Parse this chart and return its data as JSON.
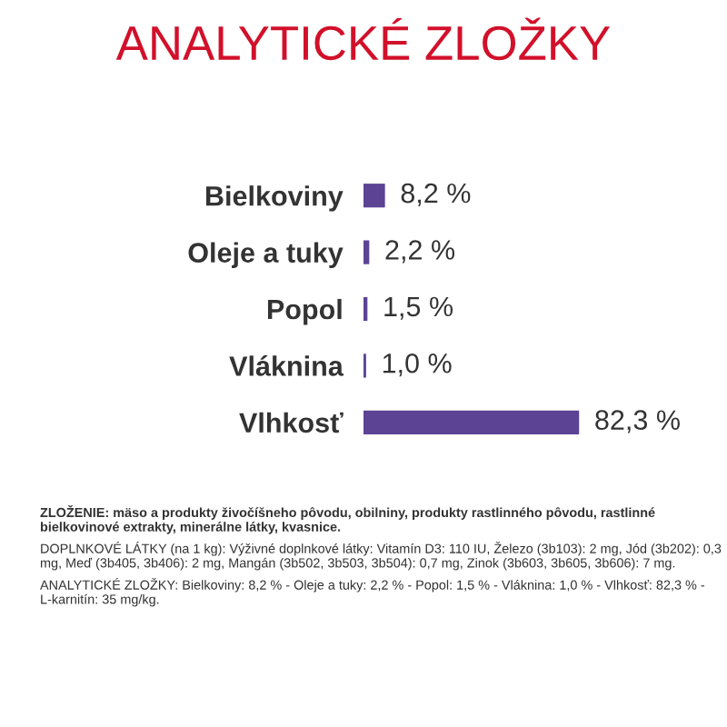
{
  "chart_data": {
    "type": "bar",
    "orientation": "horizontal",
    "title": "ANALYTICKÉ ZLOŽKY",
    "categories": [
      "Bielkoviny",
      "Oleje a tuky",
      "Popol",
      "Vláknina",
      "Vlhkosť"
    ],
    "values": [
      8.2,
      2.2,
      1.5,
      1.0,
      82.3
    ],
    "value_labels": [
      "8,2 %",
      "2,2 %",
      "1,5 %",
      "1,0 %",
      "82,3 %"
    ],
    "color": "#5c4394",
    "annotations": [
      "ZLOŽENIE: mäso a produkty živočíšneho pôvodu, obilniny, produkty rastlinného pôvodu, rastlinné bielkovinové extrakty, minerálne látky, kvasnice.",
      "DOPLNKOVÉ LÁTKY (na 1 kg): Výživné doplnkové látky: Vitamín D3: 110 IU, Železo (3b103): 2 mg, Jód (3b202): 0,3 mg, Meď (3b405, 3b406): 2 mg, Mangán (3b502, 3b503, 3b504): 0,7 mg, Zinok (3b603, 3b605, 3b606): 7 mg.",
      "ANALYTICKÉ ZLOŽKY: Bielkoviny: 8,2 % - Oleje a tuky: 2,2 % - Popol: 1,5 % - Vláknina: 1,0 % - Vlhkosť: 82,3 % - L-karnitín: 35 mg/kg."
    ]
  }
}
